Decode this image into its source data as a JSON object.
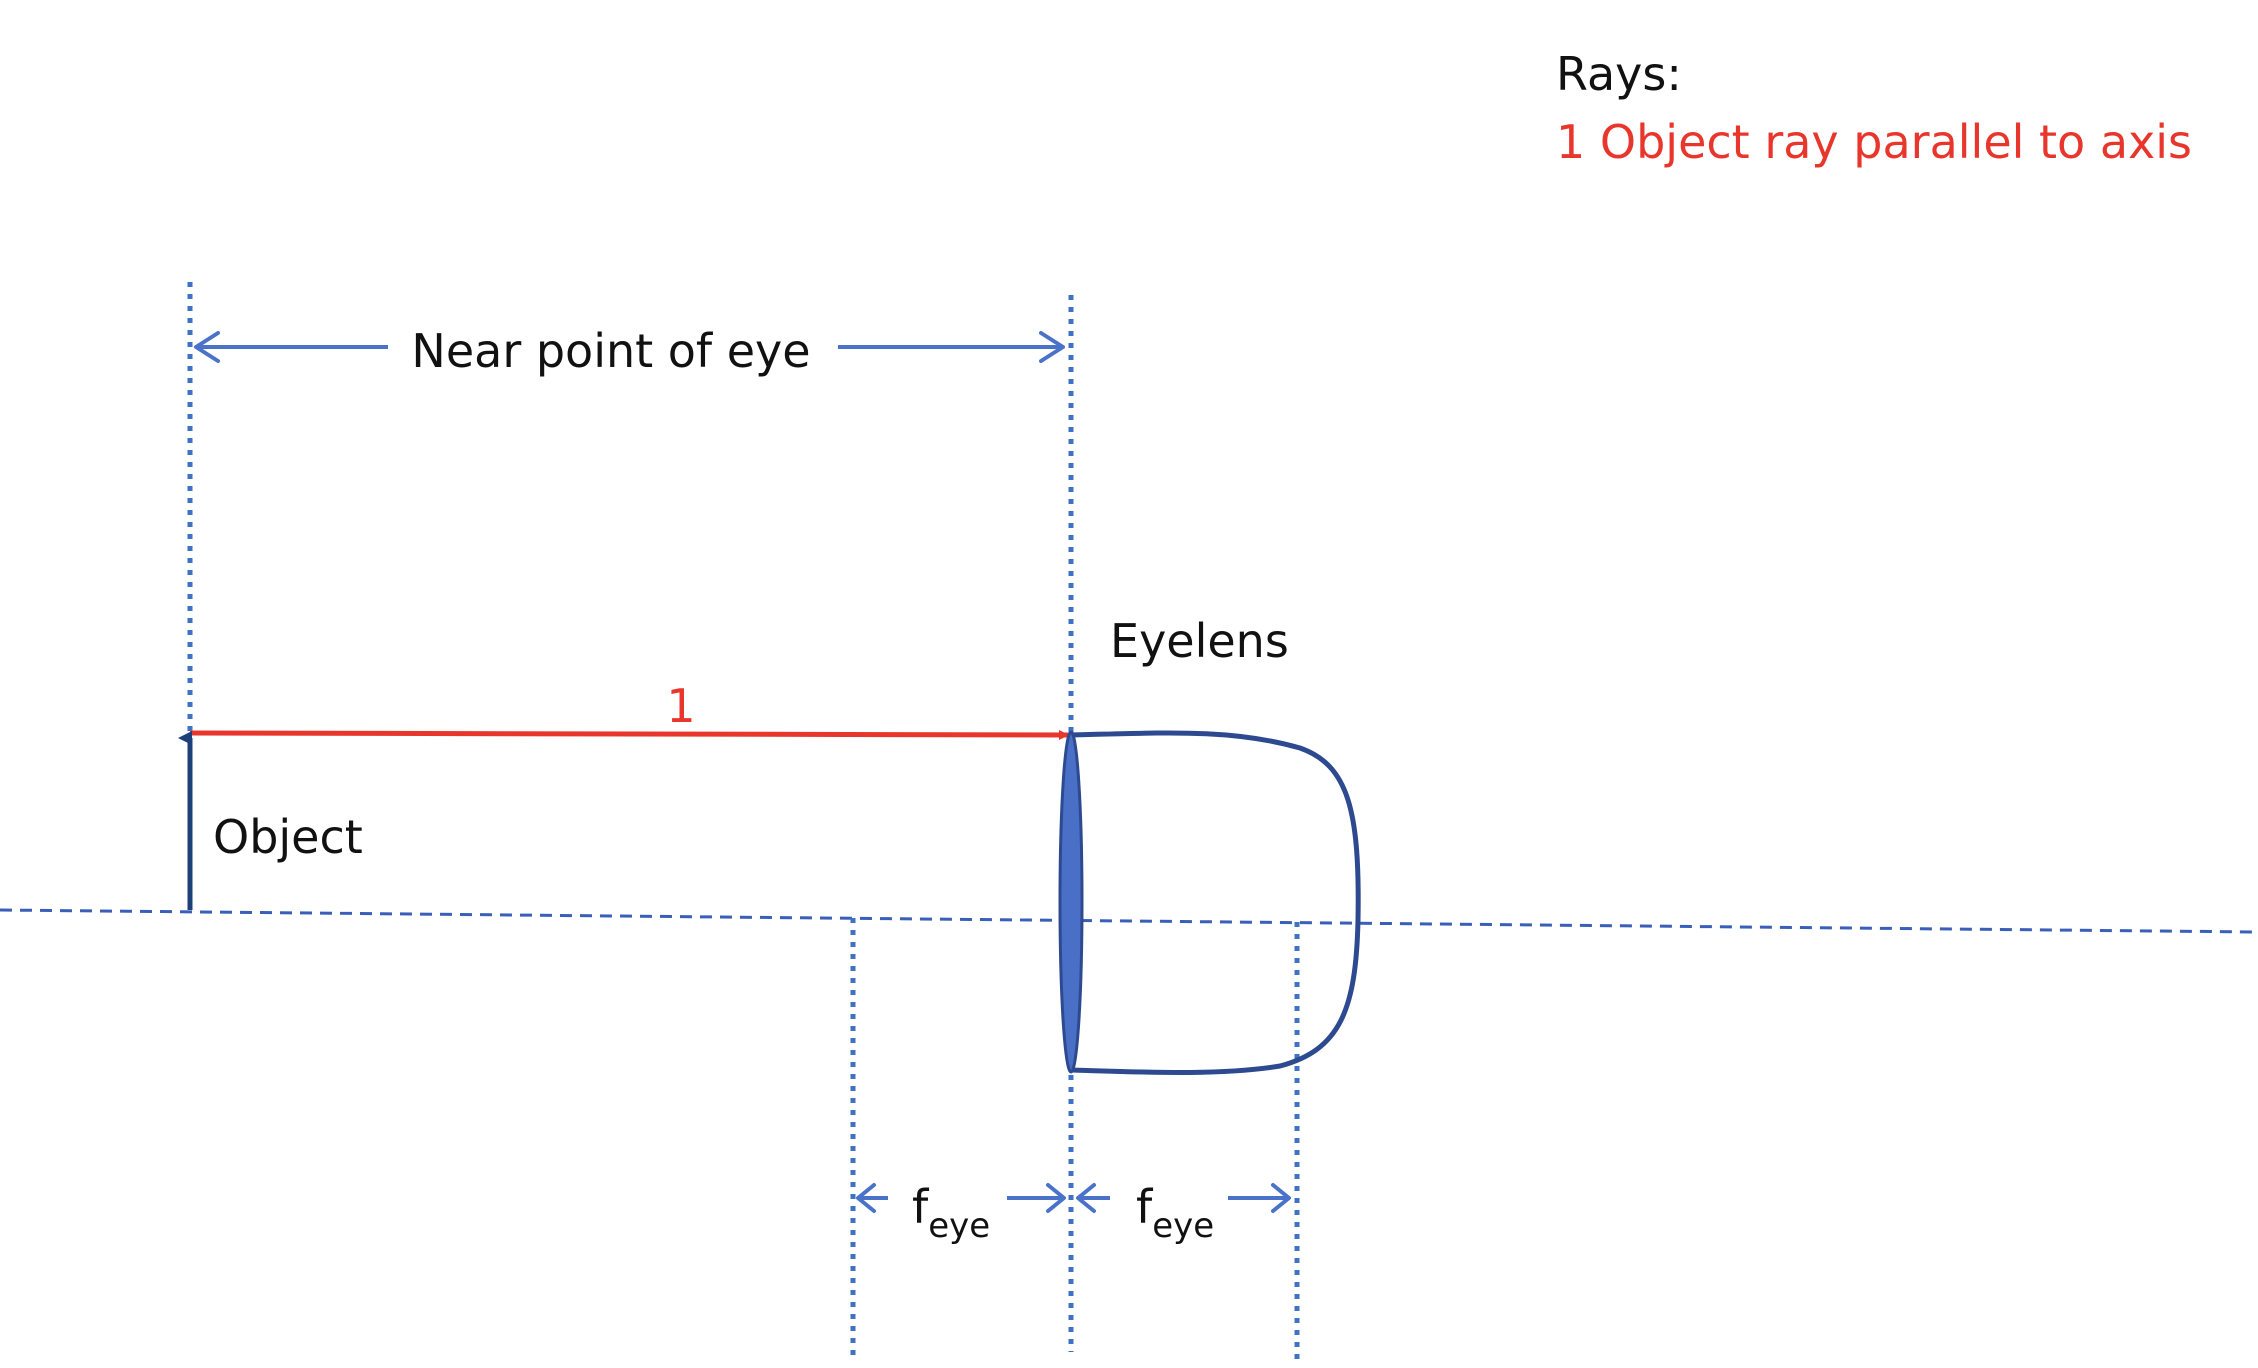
{
  "legend": {
    "heading": "Rays:",
    "items": [
      {
        "label": "1 Object ray parallel to axis",
        "color": "#e8362c"
      }
    ]
  },
  "labels": {
    "near_point": "Near point of eye",
    "eyelens": "Eyelens",
    "object": "Object",
    "ray_number": "1",
    "focal_main": "f",
    "focal_sub": "eye"
  },
  "colors": {
    "ray": "#e8362c",
    "lens_fill": "#4a6fc6",
    "lens_stroke": "#2d4a91",
    "eye_outline": "#2d4a91",
    "guides": "#3f72c4",
    "object_arrow": "#1d3f7a"
  }
}
